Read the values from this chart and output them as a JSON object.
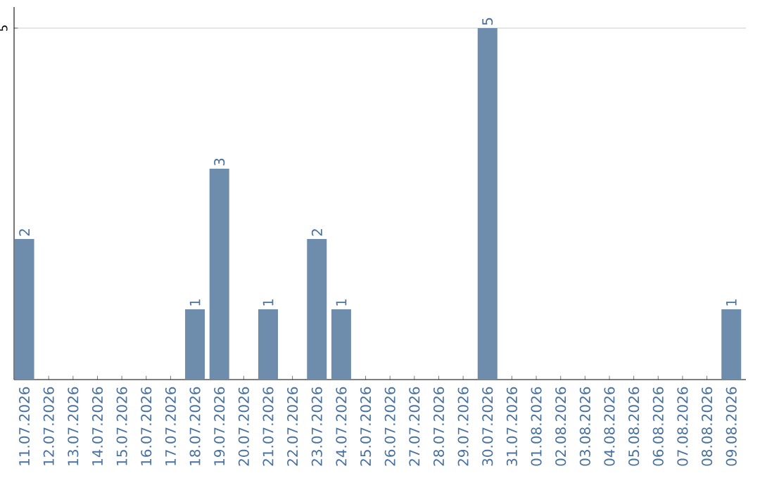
{
  "chart_data": {
    "type": "bar",
    "categories": [
      "11.07.2026",
      "12.07.2026",
      "13.07.2026",
      "14.07.2026",
      "15.07.2026",
      "16.07.2026",
      "17.07.2026",
      "18.07.2026",
      "19.07.2026",
      "20.07.2026",
      "21.07.2026",
      "22.07.2026",
      "23.07.2026",
      "24.07.2026",
      "25.07.2026",
      "26.07.2026",
      "27.07.2026",
      "28.07.2026",
      "29.07.2026",
      "30.07.2026",
      "31.07.2026",
      "01.08.2026",
      "02.08.2026",
      "03.08.2026",
      "04.08.2026",
      "05.08.2026",
      "06.08.2026",
      "07.08.2026",
      "08.08.2026",
      "09.08.2026"
    ],
    "values": [
      2,
      0,
      0,
      0,
      0,
      0,
      0,
      1,
      3,
      0,
      1,
      0,
      2,
      1,
      0,
      0,
      0,
      0,
      0,
      5,
      0,
      0,
      0,
      0,
      0,
      0,
      0,
      0,
      0,
      1
    ],
    "value_labels": [
      "2",
      null,
      null,
      null,
      null,
      null,
      null,
      "1",
      "3",
      null,
      "1",
      null,
      "2",
      "1",
      null,
      null,
      null,
      null,
      null,
      "5",
      null,
      null,
      null,
      null,
      null,
      null,
      null,
      null,
      null,
      "1"
    ],
    "color": "#6e8cab",
    "ylim": [
      0,
      5.3
    ],
    "yticks": [
      5
    ],
    "grid": "y"
  }
}
